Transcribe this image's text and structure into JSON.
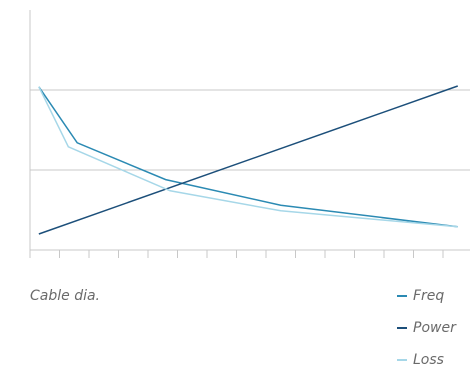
{
  "chart_data": {
    "type": "line",
    "x_label": "Cable dia.",
    "xlim": [
      0,
      15
    ],
    "xticks": [
      0,
      1,
      2,
      3,
      4,
      5,
      6,
      7,
      8,
      9,
      10,
      11,
      12,
      13,
      14
    ],
    "ylim": [
      0,
      3
    ],
    "yticks": [
      0,
      1,
      2
    ],
    "grid": true,
    "legend": "bottom-right",
    "series": [
      {
        "name": "Freq",
        "color": "#2b8ab3",
        "x": [
          0.3,
          1.6,
          4.6,
          8.5,
          14.5
        ],
        "values": [
          2.04,
          1.34,
          0.88,
          0.56,
          0.29
        ]
      },
      {
        "name": "Power",
        "color": "#1c4f7a",
        "x": [
          0.3,
          14.5
        ],
        "values": [
          0.2,
          2.05
        ]
      },
      {
        "name": "Loss",
        "color": "#a6d7e8",
        "x": [
          0.3,
          1.3,
          4.75,
          8.5,
          14.5
        ],
        "values": [
          2.04,
          1.29,
          0.74,
          0.49,
          0.29
        ]
      }
    ]
  }
}
